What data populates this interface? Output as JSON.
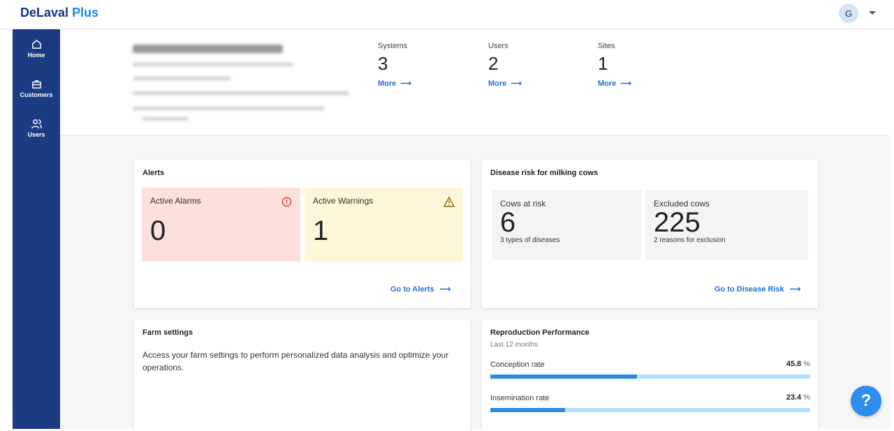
{
  "header": {
    "logo_main": "DeLaval",
    "logo_accent": "Plus",
    "avatar_initial": "G"
  },
  "sidebar": {
    "items": [
      {
        "label": "Home",
        "icon": "home-icon"
      },
      {
        "label": "Customers",
        "icon": "briefcase-icon"
      },
      {
        "label": "Users",
        "icon": "users-icon"
      }
    ]
  },
  "stats": [
    {
      "label": "Systems",
      "value": "3",
      "link": "More"
    },
    {
      "label": "Users",
      "value": "2",
      "link": "More"
    },
    {
      "label": "Sites",
      "value": "1",
      "link": "More"
    }
  ],
  "alerts": {
    "title": "Alerts",
    "alarms_label": "Active Alarms",
    "alarms_value": "0",
    "warnings_label": "Active Warnings",
    "warnings_value": "1",
    "link": "Go to Alerts",
    "colors": {
      "alarm_bg": "#fde0dc",
      "warning_bg": "#fdf6d8"
    }
  },
  "disease": {
    "title": "Disease risk for milking cows",
    "risk_label": "Cows at risk",
    "risk_value": "6",
    "risk_sub": "3 types of diseases",
    "excluded_label": "Excluded cows",
    "excluded_value": "225",
    "excluded_sub": "2 reasons for exclusion",
    "link": "Go to Disease Risk"
  },
  "farm": {
    "title": "Farm settings",
    "text": "Access your farm settings to perform personalized data analysis and optimize your operations."
  },
  "repro": {
    "title": "Reproduction Performance",
    "subtitle": "Last 12 months",
    "metrics": [
      {
        "label": "Conception rate",
        "value": "45.8",
        "unit": "%",
        "percent": 45.8
      },
      {
        "label": "Insemination rate",
        "value": "23.4",
        "unit": "%",
        "percent": 23.4
      }
    ]
  },
  "help": {
    "label": "?"
  }
}
